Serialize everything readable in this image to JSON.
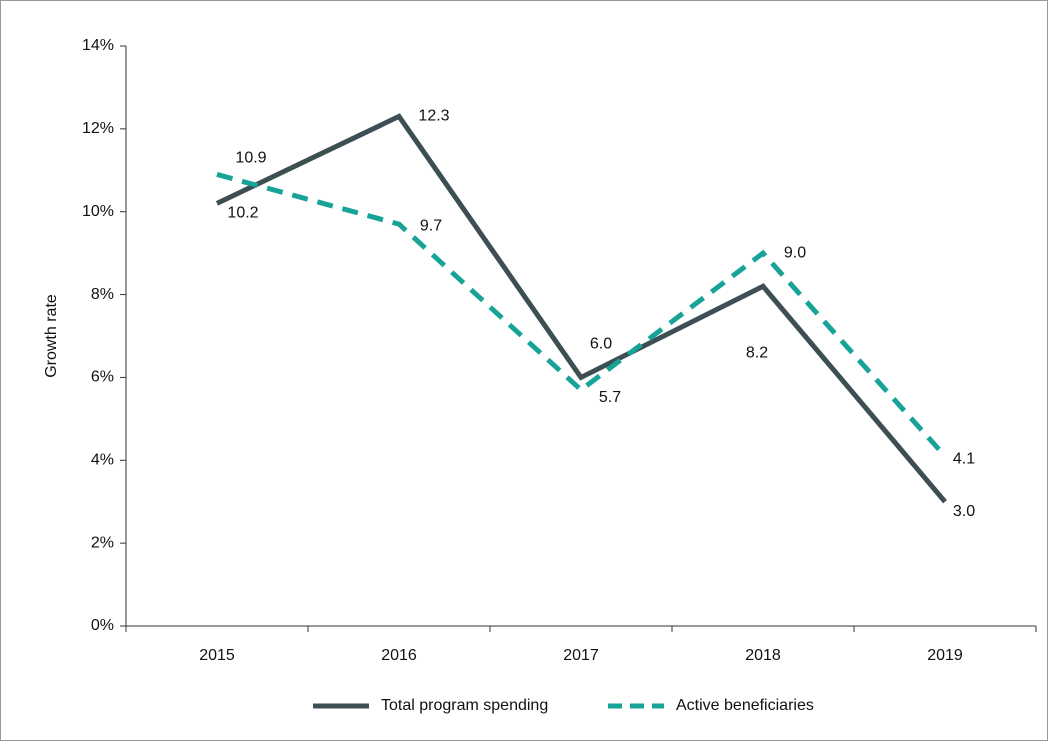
{
  "chart_data": {
    "type": "line",
    "y_label": "Growth rate",
    "categories": [
      "2015",
      "2016",
      "2017",
      "2018",
      "2019"
    ],
    "series": [
      {
        "name": "Total program spending",
        "color": "#3d4f52",
        "dash": "solid",
        "values": [
          10.2,
          12.3,
          6.0,
          8.2,
          3.0
        ],
        "value_labels": [
          "10.2",
          "12.3",
          "6.0",
          "8.2",
          "3.0"
        ]
      },
      {
        "name": "Active beneficiaries",
        "color": "#17a398",
        "dash": "dashed",
        "values": [
          10.9,
          9.7,
          5.7,
          9.0,
          4.1
        ],
        "value_labels": [
          "10.9",
          "9.7",
          "5.7",
          "9.0",
          "4.1"
        ]
      }
    ],
    "ylim": [
      0,
      14
    ],
    "yticks": [
      {
        "value": 0,
        "label": "0%"
      },
      {
        "value": 2,
        "label": "2%"
      },
      {
        "value": 4,
        "label": "4%"
      },
      {
        "value": 6,
        "label": "6%"
      },
      {
        "value": 8,
        "label": "8%"
      },
      {
        "value": 10,
        "label": "10%"
      },
      {
        "value": 12,
        "label": "12%"
      },
      {
        "value": 14,
        "label": "14%"
      }
    ],
    "grid": false,
    "legend": "bottom"
  }
}
